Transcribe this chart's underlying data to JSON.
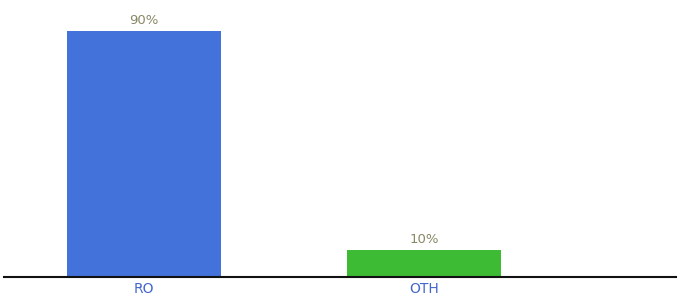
{
  "categories": [
    "RO",
    "OTH"
  ],
  "values": [
    90,
    10
  ],
  "bar_colors": [
    "#4472db",
    "#3dbb35"
  ],
  "background_color": "#ffffff",
  "ylim": [
    0,
    100
  ],
  "bar_width": 0.55,
  "label_fontsize": 9.5,
  "tick_fontsize": 10,
  "label_color": "#888866",
  "tick_color": "#4466cc",
  "spine_color": "#111111"
}
